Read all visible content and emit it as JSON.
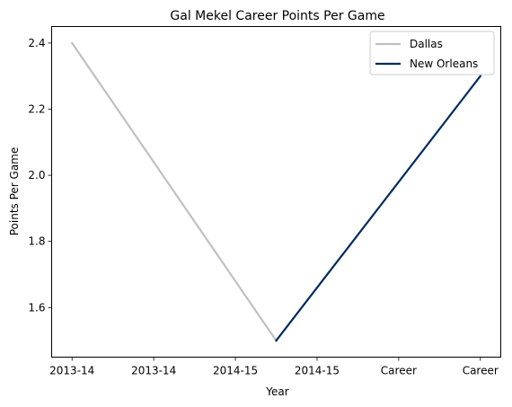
{
  "chart_data": {
    "type": "line",
    "title": "Gal Mekel Career Points Per Game",
    "xlabel": "Year",
    "ylabel": "Points Per Game",
    "categories": [
      "2013-14",
      "2013-14",
      "2014-15",
      "2014-15",
      "Career",
      "Career"
    ],
    "yticks": [
      1.6,
      1.8,
      2.0,
      2.2,
      2.4
    ],
    "ytick_labels": [
      "1.6",
      "1.8",
      "2.0",
      "2.2",
      "2.4"
    ],
    "ylim": [
      1.45,
      2.45
    ],
    "xlim": [
      -0.25,
      5.25
    ],
    "grid": false,
    "legend_position": "top-right",
    "series": [
      {
        "name": "Dallas",
        "color": "#c0c0c0",
        "x": [
          0,
          2.5
        ],
        "y": [
          2.4,
          1.5
        ]
      },
      {
        "name": "New Orleans",
        "color": "#002b5c",
        "x": [
          2.5,
          5.0
        ],
        "y": [
          1.5,
          2.3
        ]
      }
    ]
  }
}
